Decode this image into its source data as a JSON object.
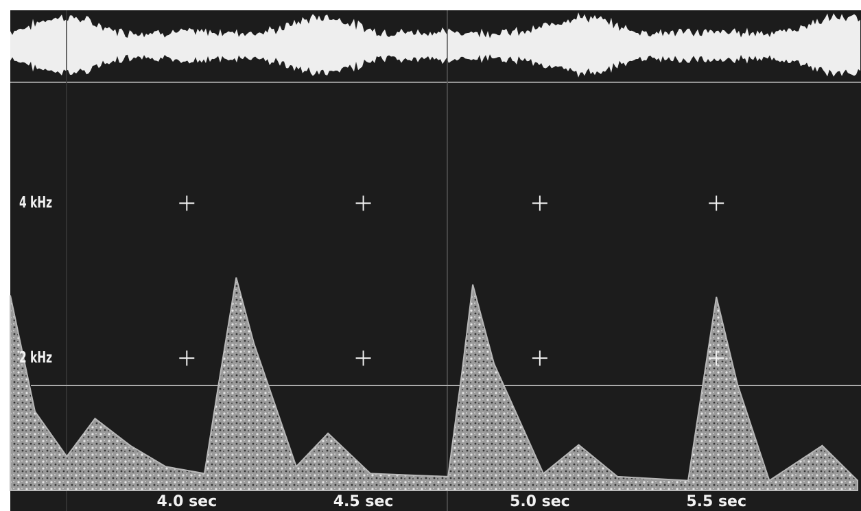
{
  "chart_data": {
    "type": "spectrogram",
    "x": [
      3.5,
      3.57,
      3.66,
      3.74,
      3.84,
      3.94,
      4.05,
      4.09,
      4.14,
      4.19,
      4.31,
      4.4,
      4.52,
      4.74,
      4.78,
      4.81,
      4.87,
      5.01,
      5.11,
      5.22,
      5.42,
      5.45,
      5.5,
      5.56,
      5.65,
      5.8,
      5.9
    ],
    "values": [
      2.81,
      1.31,
      0.73,
      1.22,
      0.87,
      0.6,
      0.51,
      1.66,
      3.04,
      2.19,
      0.6,
      1.03,
      0.51,
      0.47,
      1.84,
      2.95,
      1.93,
      0.51,
      0.88,
      0.47,
      0.42,
      1.31,
      2.79,
      1.66,
      0.42,
      0.87,
      0.42
    ],
    "color": "#b8b8b8",
    "xlim": [
      3.5,
      5.9
    ],
    "ylim": [
      0,
      5.56
    ],
    "xticks": [
      {
        "value": 4.0,
        "label": "4.0 sec"
      },
      {
        "value": 4.5,
        "label": "4.5 sec"
      },
      {
        "value": 5.0,
        "label": "5.0 sec"
      },
      {
        "value": 5.5,
        "label": "5.5 sec"
      }
    ],
    "yticks": [
      {
        "value": 2,
        "label": "2 kHz"
      },
      {
        "value": 4,
        "label": "4 kHz"
      }
    ]
  }
}
